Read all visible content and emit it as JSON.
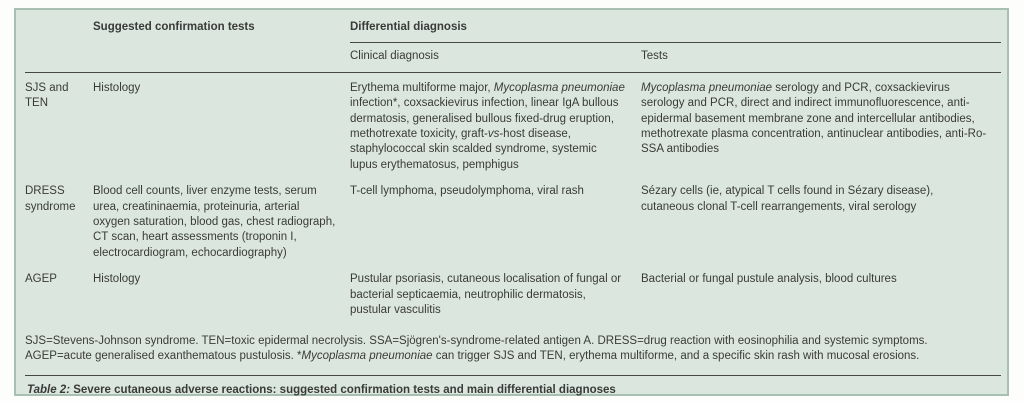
{
  "colors": {
    "card_background": "#dbe7de",
    "card_border": "#a7c0b1",
    "text": "#3a3a3a",
    "rule": "#474747"
  },
  "header": {
    "confirmation_label": "Suggested confirmation tests",
    "differential_label": "Differential diagnosis",
    "sub_clinical_label": "Clinical diagnosis",
    "sub_tests_label": "Tests"
  },
  "rows": [
    {
      "label": "SJS and TEN",
      "confirmation": [
        {
          "t": "Histology"
        }
      ],
      "clinical": [
        {
          "t": "Erythema multiforme major, "
        },
        {
          "t": "Mycoplasma pneumoniae",
          "i": true
        },
        {
          "t": " infection*, coxsackievirus infection, linear IgA bullous dermatosis, generalised bullous fixed-drug eruption, methotrexate toxicity, graft-"
        },
        {
          "t": "vs",
          "i": true
        },
        {
          "t": "-host disease, staphylococcal skin scalded syndrome, systemic lupus erythematosus, pemphigus"
        }
      ],
      "tests": [
        {
          "t": "Mycoplasma pneumoniae",
          "i": true
        },
        {
          "t": " serology and PCR, coxsackievirus serology and PCR, direct and indirect immunofluorescence, anti-epidermal basement membrane zone and intercellular antibodies, methotrexate plasma concentration, antinuclear antibodies, anti-Ro-SSA antibodies"
        }
      ]
    },
    {
      "label": "DRESS syndrome",
      "confirmation": [
        {
          "t": "Blood cell counts, liver enzyme tests, serum urea, creatininaemia, proteinuria, arterial oxygen saturation, blood gas, chest radiograph, CT scan, heart assessments (troponin I, electrocardiogram, echocardiography)"
        }
      ],
      "clinical": [
        {
          "t": "T-cell lymphoma, pseudolymphoma, viral rash"
        }
      ],
      "tests": [
        {
          "t": "Sézary cells (ie, atypical T cells found in Sézary disease), cutaneous clonal T-cell rearrangements, viral serology"
        }
      ]
    },
    {
      "label": "AGEP",
      "confirmation": [
        {
          "t": "Histology"
        }
      ],
      "clinical": [
        {
          "t": "Pustular psoriasis, cutaneous localisation of fungal or bacterial septicaemia, neutrophilic dermatosis, pustular vasculitis"
        }
      ],
      "tests": [
        {
          "t": "Bacterial or fungal pustule analysis, blood cultures"
        }
      ]
    }
  ],
  "footnote": [
    {
      "t": "SJS=Stevens-Johnson syndrome. TEN=toxic epidermal necrolysis. SSA=Sjögren's-syndrome-related antigen A. DRESS=drug reaction with eosinophilia and systemic symptoms. AGEP=acute generalised exanthematous pustulosis. *"
    },
    {
      "t": "Mycoplasma pneumoniae",
      "i": true
    },
    {
      "t": " can trigger SJS and TEN, erythema multiforme, and a specific skin rash with mucosal erosions."
    }
  ],
  "caption": {
    "lead": "Table 2:",
    "text": " Severe cutaneous adverse reactions: suggested confirmation tests and main differential diagnoses"
  }
}
